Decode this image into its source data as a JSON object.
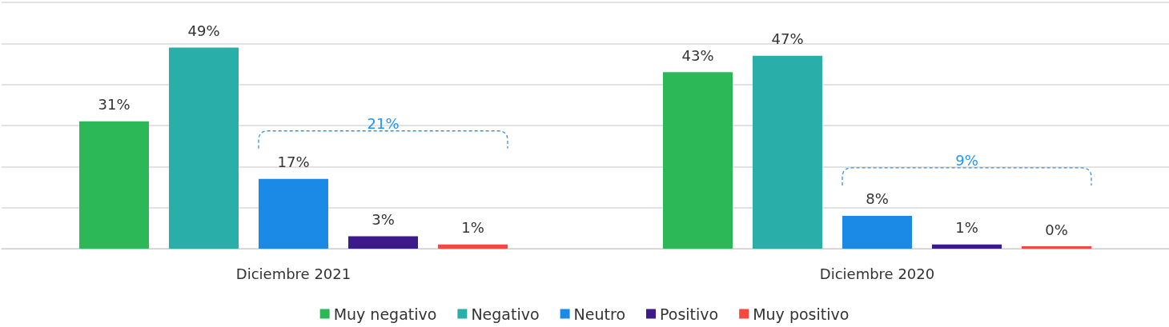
{
  "chart_data": {
    "type": "bar",
    "categories": [
      "Diciembre 2021",
      "Diciembre 2020"
    ],
    "series": [
      {
        "name": "Muy negativo",
        "color": "#2db858",
        "values": [
          31,
          43
        ],
        "value_labels": [
          "31%",
          "43%"
        ]
      },
      {
        "name": "Negativo",
        "color": "#29aeaa",
        "values": [
          49,
          47
        ],
        "value_labels": [
          "49%",
          "47%"
        ]
      },
      {
        "name": "Neutro",
        "color": "#1a8ae6",
        "values": [
          17,
          8
        ],
        "value_labels": [
          "17%",
          "8%"
        ]
      },
      {
        "name": "Positivo",
        "color": "#3d1a8c",
        "values": [
          3,
          1
        ],
        "value_labels": [
          "3%",
          "1%"
        ]
      },
      {
        "name": "Muy positivo",
        "color": "#f5483f",
        "values": [
          1,
          0
        ],
        "value_labels": [
          "1%",
          "0%"
        ]
      }
    ],
    "grid": "y",
    "tick_labels": "x",
    "legend": "bottom",
    "annotations": [
      "21%",
      "9%"
    ]
  }
}
